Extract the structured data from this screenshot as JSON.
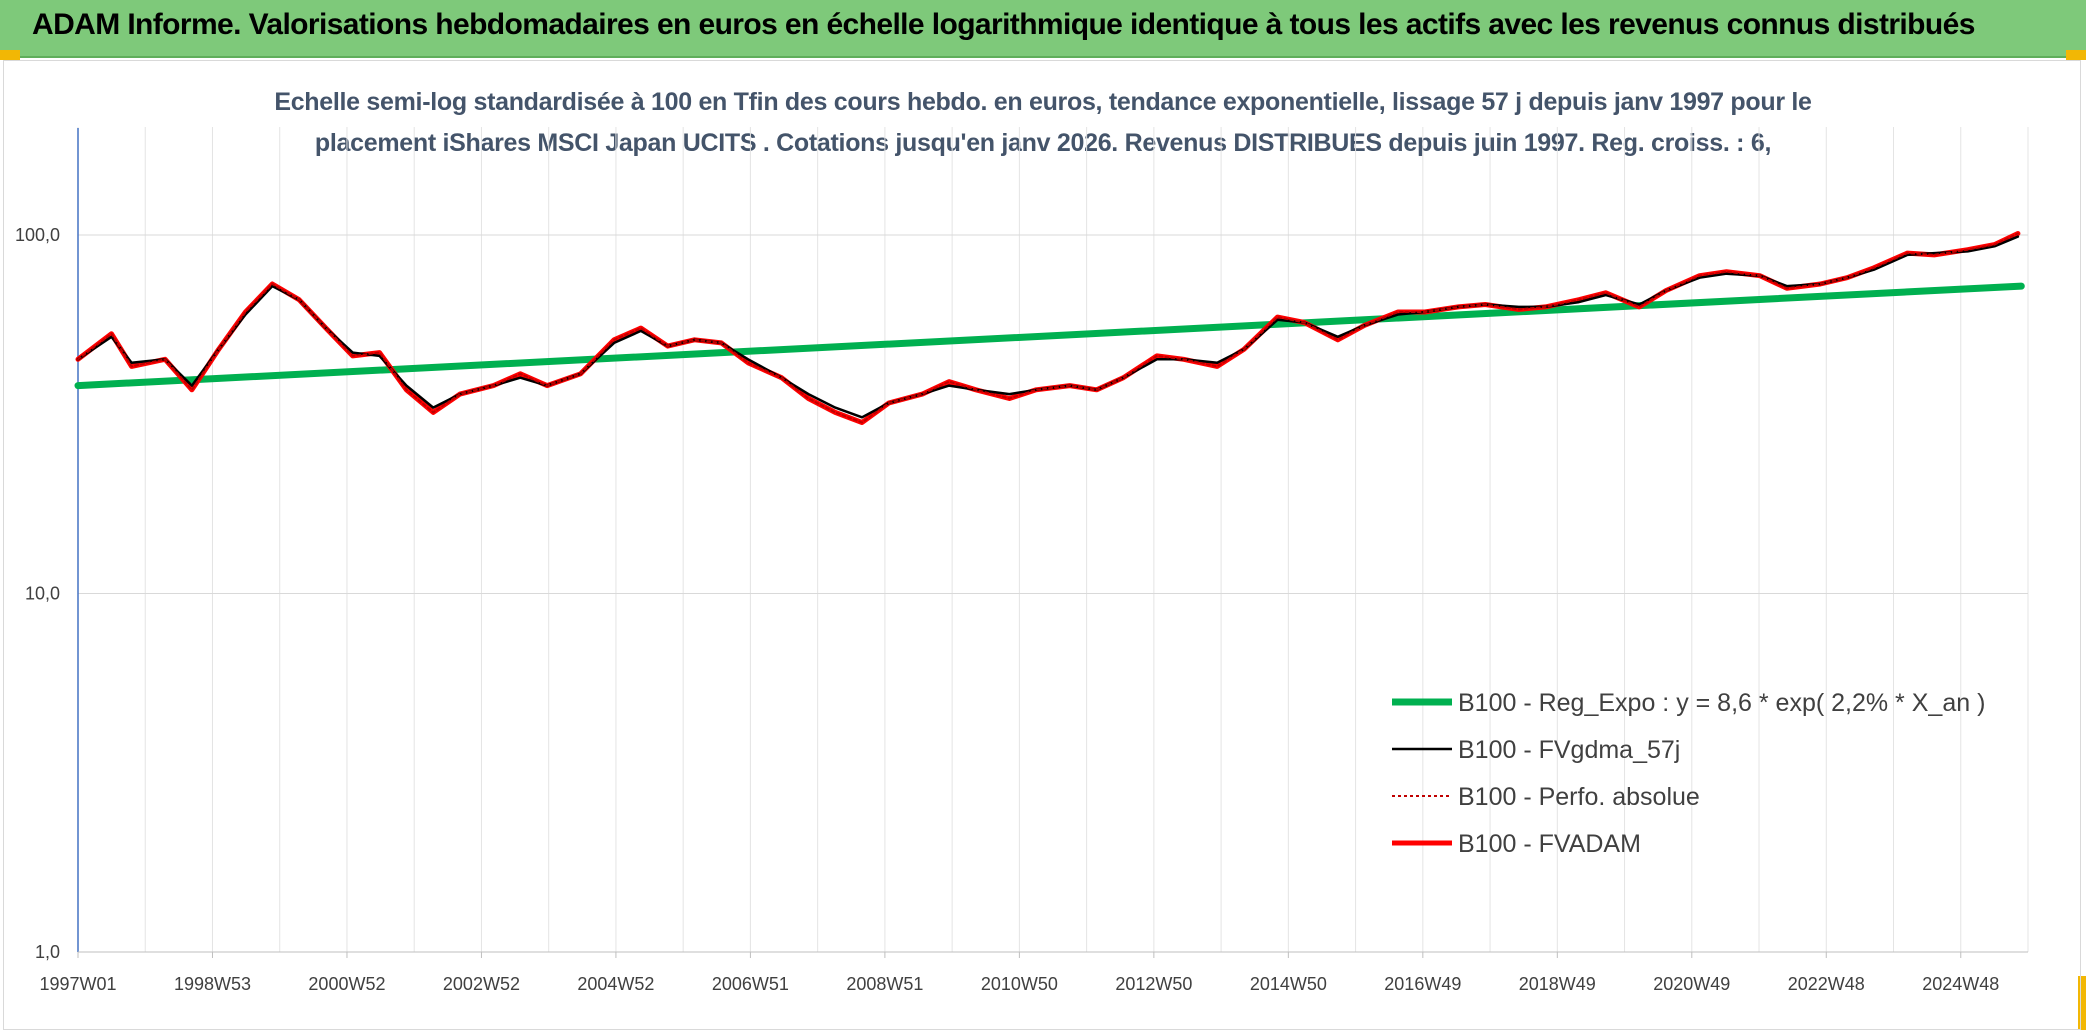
{
  "header": {
    "title": "ADAM Informe. Valorisations hebdomadaires en euros en échelle logarithmique identique à tous les actifs avec les revenus connus distribués"
  },
  "colors": {
    "header_bg": "#7ec97a",
    "accent_corner": "#f2b705",
    "trend": "#00b050",
    "smoothed": "#000000",
    "perf": "#c00000",
    "fvadam": "#ff0000",
    "axis_left": "#4472c4"
  },
  "chart_data": {
    "type": "line",
    "title": "Echelle semi-log standardisée à 100 en Tfin des cours hebdo. en euros, tendance exponentielle, lissage 57 j depuis janv 1997 pour le",
    "subtitle": "placement iShares MSCI Japan UCITS . Cotations jusqu'en janv 2026. Revenus DISTRIBUES depuis juin 1997. Reg. croiss. : 6,",
    "xlabel": "",
    "ylabel": "",
    "y_scale": "log",
    "ylim": [
      1,
      100
    ],
    "grid": true,
    "legend_position": "bottom-right",
    "x_range": [
      "1997W01",
      "2026W02"
    ],
    "x_tick_labels": [
      "1997W01",
      "1998W53",
      "2000W52",
      "2002W52",
      "2004W52",
      "2006W51",
      "2008W51",
      "2010W50",
      "2012W50",
      "2014W50",
      "2016W49",
      "2018W49",
      "2020W49",
      "2022W48",
      "2024W48"
    ],
    "y_tick_labels": [
      "1,0",
      "10,0",
      "100,0"
    ],
    "y_ticks": [
      1,
      10,
      100
    ],
    "series": [
      {
        "name": "B100 - Reg_Expo : y = 8,6 * exp( 2,2% *  X_an )",
        "style": "thick-green",
        "x": [
          1997.0,
          2026.0
        ],
        "y": [
          38,
          72
        ]
      },
      {
        "name": "B100 - FVgdma_57j",
        "style": "black",
        "x": [
          1997.0,
          1997.5,
          1997.8,
          1998.3,
          1998.7,
          1999.1,
          1999.5,
          1999.9,
          2000.3,
          2000.7,
          2001.1,
          2001.5,
          2001.9,
          2002.3,
          2002.7,
          2003.2,
          2003.6,
          2004.0,
          2004.5,
          2005.0,
          2005.4,
          2005.8,
          2006.2,
          2006.6,
          2007.0,
          2007.5,
          2007.9,
          2008.3,
          2008.7,
          2009.1,
          2009.6,
          2010.0,
          2010.4,
          2010.9,
          2011.3,
          2011.8,
          2012.2,
          2012.6,
          2013.1,
          2013.5,
          2014.0,
          2014.4,
          2014.9,
          2015.3,
          2015.8,
          2016.2,
          2016.7,
          2017.1,
          2017.6,
          2018.0,
          2018.5,
          2018.9,
          2019.4,
          2019.8,
          2020.3,
          2020.7,
          2021.2,
          2021.6,
          2022.1,
          2022.5,
          2023.0,
          2023.4,
          2023.8,
          2024.3,
          2024.7,
          2025.2,
          2025.6,
          2025.95
        ],
        "y": [
          45,
          52,
          44,
          45,
          38,
          48,
          60,
          72,
          66,
          55,
          47,
          46,
          38,
          33,
          36,
          38,
          40,
          38,
          41,
          50,
          54,
          49,
          51,
          50,
          45,
          40,
          36,
          33,
          31,
          34,
          36,
          38,
          37,
          36,
          37,
          38,
          37,
          40,
          45,
          45,
          44,
          48,
          58,
          57,
          52,
          56,
          60,
          61,
          63,
          64,
          63,
          63,
          65,
          68,
          64,
          70,
          76,
          78,
          77,
          72,
          73,
          76,
          80,
          88,
          89,
          90,
          93,
          99
        ]
      },
      {
        "name": "B100 - Perfo. absolue",
        "style": "dotted-red",
        "x": [
          1997.0,
          1997.5,
          1997.8,
          1998.3,
          1998.7,
          1999.1,
          1999.5,
          1999.9,
          2000.3,
          2000.7,
          2001.1,
          2001.5,
          2001.9,
          2002.3,
          2002.7,
          2003.2,
          2003.6,
          2004.0,
          2004.5,
          2005.0,
          2005.4,
          2005.8,
          2006.2,
          2006.6,
          2007.0,
          2007.5,
          2007.9,
          2008.3,
          2008.7,
          2009.1,
          2009.6,
          2010.0,
          2010.4,
          2010.9,
          2011.3,
          2011.8,
          2012.2,
          2012.6,
          2013.1,
          2013.5,
          2014.0,
          2014.4,
          2014.9,
          2015.3,
          2015.8,
          2016.2,
          2016.7,
          2017.1,
          2017.6,
          2018.0,
          2018.5,
          2018.9,
          2019.4,
          2019.8,
          2020.3,
          2020.7,
          2021.2,
          2021.6,
          2022.1,
          2022.5,
          2023.0,
          2023.4,
          2023.8,
          2024.3,
          2024.7,
          2025.2,
          2025.6,
          2025.95
        ],
        "y": [
          45,
          53,
          43,
          45,
          37,
          48,
          61,
          73,
          66,
          55,
          46,
          47,
          37,
          32,
          36,
          38,
          41,
          38,
          41,
          51,
          55,
          49,
          51,
          50,
          44,
          40,
          35,
          32,
          30,
          34,
          36,
          39,
          37,
          35,
          37,
          38,
          37,
          40,
          46,
          45,
          43,
          48,
          59,
          57,
          51,
          56,
          61,
          61,
          63,
          64,
          62,
          63,
          66,
          69,
          63,
          70,
          77,
          79,
          77,
          71,
          73,
          76,
          81,
          89,
          88,
          91,
          94,
          101
        ]
      },
      {
        "name": "B100 - FVADAM",
        "style": "thick-red",
        "x": [
          1997.0,
          1997.5,
          1997.8,
          1998.3,
          1998.7,
          1999.1,
          1999.5,
          1999.9,
          2000.3,
          2000.7,
          2001.1,
          2001.5,
          2001.9,
          2002.3,
          2002.7,
          2003.2,
          2003.6,
          2004.0,
          2004.5,
          2005.0,
          2005.4,
          2005.8,
          2006.2,
          2006.6,
          2007.0,
          2007.5,
          2007.9,
          2008.3,
          2008.7,
          2009.1,
          2009.6,
          2010.0,
          2010.4,
          2010.9,
          2011.3,
          2011.8,
          2012.2,
          2012.6,
          2013.1,
          2013.5,
          2014.0,
          2014.4,
          2014.9,
          2015.3,
          2015.8,
          2016.2,
          2016.7,
          2017.1,
          2017.6,
          2018.0,
          2018.5,
          2018.9,
          2019.4,
          2019.8,
          2020.3,
          2020.7,
          2021.2,
          2021.6,
          2022.1,
          2022.5,
          2023.0,
          2023.4,
          2023.8,
          2024.3,
          2024.7,
          2025.2,
          2025.6,
          2025.95
        ],
        "y": [
          45,
          53,
          43,
          45,
          37,
          48,
          61,
          73,
          66,
          55,
          46,
          47,
          37,
          32,
          36,
          38,
          41,
          38,
          41,
          51,
          55,
          49,
          51,
          50,
          44,
          40,
          35,
          32,
          30,
          34,
          36,
          39,
          37,
          35,
          37,
          38,
          37,
          40,
          46,
          45,
          43,
          48,
          59,
          57,
          51,
          56,
          61,
          61,
          63,
          64,
          62,
          63,
          66,
          69,
          63,
          70,
          77,
          79,
          77,
          71,
          73,
          76,
          81,
          89,
          88,
          91,
          94,
          101
        ]
      }
    ]
  }
}
